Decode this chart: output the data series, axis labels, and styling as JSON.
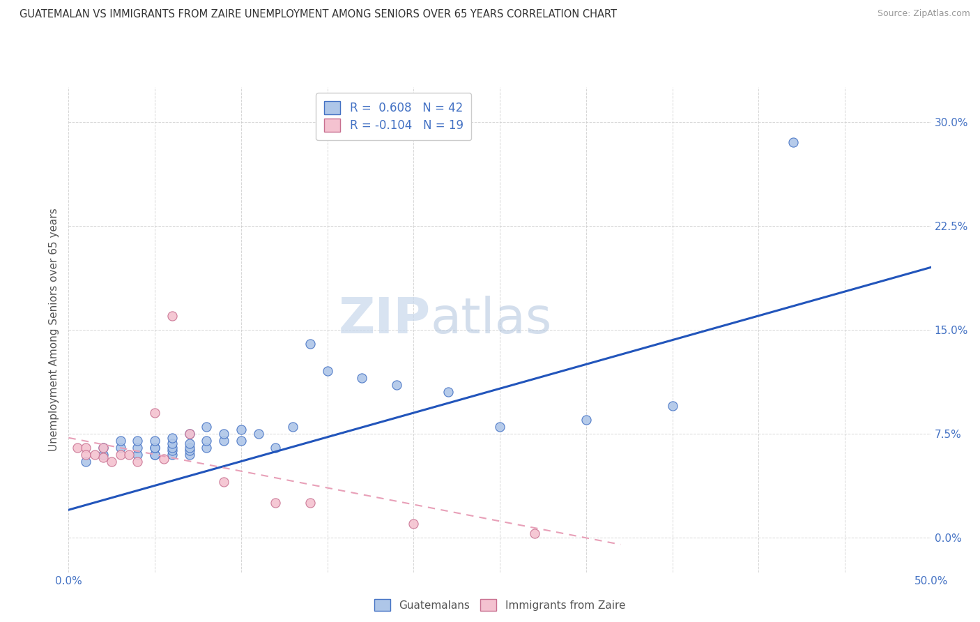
{
  "title": "GUATEMALAN VS IMMIGRANTS FROM ZAIRE UNEMPLOYMENT AMONG SENIORS OVER 65 YEARS CORRELATION CHART",
  "source": "Source: ZipAtlas.com",
  "ylabel": "Unemployment Among Seniors over 65 years",
  "xlim": [
    0.0,
    0.5
  ],
  "ylim": [
    -0.025,
    0.325
  ],
  "yticks": [
    0.0,
    0.075,
    0.15,
    0.225,
    0.3
  ],
  "xtick_vals": [
    0.0,
    0.05,
    0.1,
    0.15,
    0.2,
    0.25,
    0.3,
    0.35,
    0.4,
    0.45,
    0.5
  ],
  "watermark_zip": "ZIP",
  "watermark_atlas": "atlas",
  "legend_R1": "0.608",
  "legend_N1": "42",
  "legend_R2": "-0.104",
  "legend_N2": "19",
  "color_blue_fill": "#aec6e8",
  "color_blue_edge": "#4472c4",
  "color_pink_fill": "#f4c2d0",
  "color_pink_edge": "#c87090",
  "line_blue_color": "#2255bb",
  "line_pink_color": "#e8a0b8",
  "guatemalans_x": [
    0.01,
    0.02,
    0.02,
    0.03,
    0.03,
    0.04,
    0.04,
    0.04,
    0.05,
    0.05,
    0.05,
    0.05,
    0.05,
    0.06,
    0.06,
    0.06,
    0.06,
    0.06,
    0.07,
    0.07,
    0.07,
    0.07,
    0.07,
    0.08,
    0.08,
    0.08,
    0.09,
    0.09,
    0.1,
    0.1,
    0.11,
    0.12,
    0.13,
    0.14,
    0.15,
    0.17,
    0.19,
    0.22,
    0.25,
    0.3,
    0.35,
    0.42
  ],
  "guatemalans_y": [
    0.055,
    0.06,
    0.065,
    0.065,
    0.07,
    0.06,
    0.065,
    0.07,
    0.06,
    0.06,
    0.065,
    0.065,
    0.07,
    0.06,
    0.063,
    0.065,
    0.068,
    0.072,
    0.06,
    0.063,
    0.065,
    0.068,
    0.075,
    0.065,
    0.07,
    0.08,
    0.07,
    0.075,
    0.07,
    0.078,
    0.075,
    0.065,
    0.08,
    0.14,
    0.12,
    0.115,
    0.11,
    0.105,
    0.08,
    0.085,
    0.095,
    0.285
  ],
  "zaire_x": [
    0.005,
    0.01,
    0.01,
    0.015,
    0.02,
    0.02,
    0.025,
    0.03,
    0.035,
    0.04,
    0.05,
    0.055,
    0.06,
    0.07,
    0.09,
    0.12,
    0.14,
    0.2,
    0.27
  ],
  "zaire_y": [
    0.065,
    0.065,
    0.06,
    0.06,
    0.065,
    0.058,
    0.055,
    0.06,
    0.06,
    0.055,
    0.09,
    0.057,
    0.16,
    0.075,
    0.04,
    0.025,
    0.025,
    0.01,
    0.003
  ],
  "blue_line_x": [
    0.0,
    0.5
  ],
  "blue_line_y": [
    0.02,
    0.195
  ],
  "pink_line_x": [
    0.0,
    0.32
  ],
  "pink_line_y": [
    0.072,
    -0.005
  ],
  "bg_color": "#ffffff",
  "grid_color": "#cccccc",
  "tick_color": "#4472c4",
  "title_color": "#333333",
  "label_color": "#555555"
}
